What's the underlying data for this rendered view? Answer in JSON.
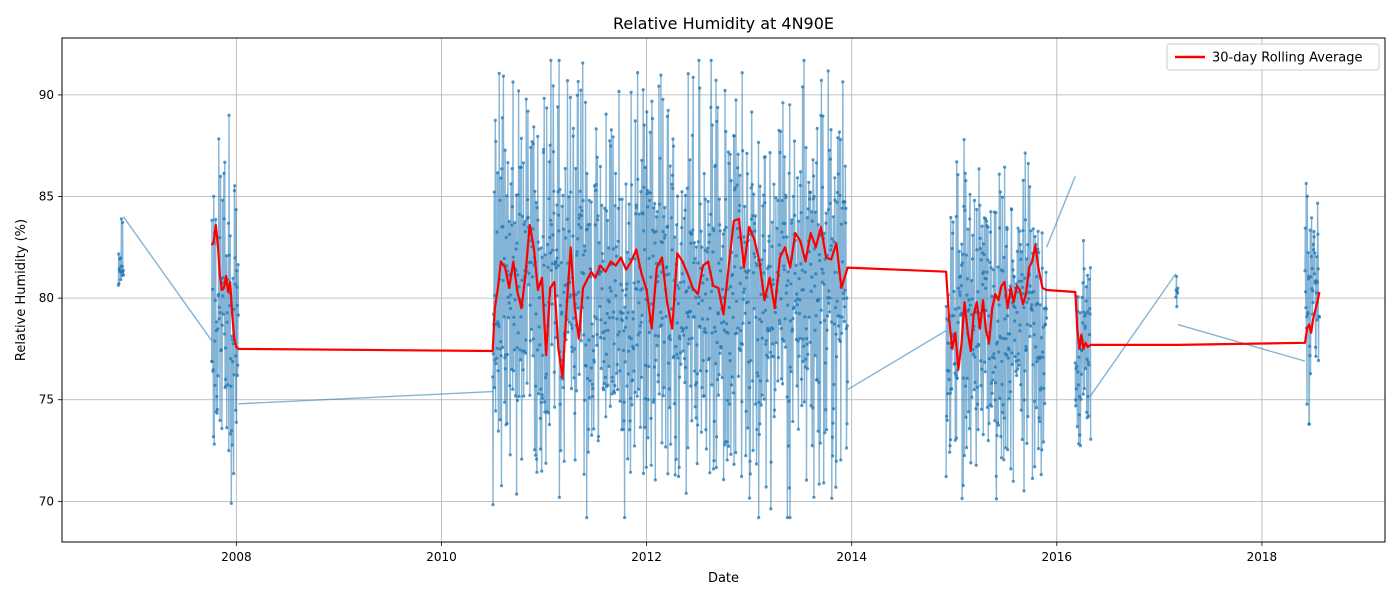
{
  "chart_data": {
    "type": "line",
    "title": "Relative Humidity at 4N90E",
    "xlabel": "Date",
    "ylabel": "Relative Humidity (%)",
    "xlim": [
      2006.3,
      2019.2
    ],
    "ylim": [
      68.0,
      92.8
    ],
    "x_ticks": [
      2008,
      2010,
      2012,
      2014,
      2016,
      2018
    ],
    "x_tick_labels": [
      "2008",
      "2010",
      "2012",
      "2014",
      "2016",
      "2018"
    ],
    "y_ticks": [
      70,
      75,
      80,
      85,
      90
    ],
    "y_tick_labels": [
      "70",
      "75",
      "80",
      "85",
      "90"
    ],
    "grid": true,
    "legend": {
      "position": "top-right",
      "entries": [
        "30-day Rolling Average"
      ]
    },
    "colors": {
      "daily": "#1f77b4",
      "rolling": "#ff0000"
    },
    "series": [
      {
        "style": "line-with-markers",
        "segments": [
          {
            "start": 2006.85,
            "end": 2006.9,
            "min": 79.5,
            "max": 84.3,
            "seed": 11
          },
          {
            "start": 2007.76,
            "end": 2008.02,
            "min": 69.9,
            "max": 89.0,
            "seed": 23
          },
          {
            "start": 2010.5,
            "end": 2013.96,
            "min": 69.2,
            "max": 91.7,
            "seed": 37
          },
          {
            "start": 2014.92,
            "end": 2015.9,
            "min": 70.1,
            "max": 87.8,
            "seed": 53
          },
          {
            "start": 2016.18,
            "end": 2016.33,
            "min": 72.3,
            "max": 83.0,
            "seed": 67
          },
          {
            "start": 2017.16,
            "end": 2017.18,
            "min": 78.7,
            "max": 81.6,
            "seed": 71
          },
          {
            "start": 2018.42,
            "end": 2018.56,
            "min": 73.8,
            "max": 86.5,
            "seed": 83
          }
        ],
        "bridges": [
          [
            [
              2006.9,
              84.0
            ],
            [
              2007.76,
              77.9
            ]
          ],
          [
            [
              2008.02,
              74.8
            ],
            [
              2010.5,
              75.4
            ]
          ],
          [
            [
              2013.96,
              75.5
            ],
            [
              2014.92,
              78.4
            ]
          ],
          [
            [
              2015.9,
              82.5
            ],
            [
              2016.18,
              86.0
            ]
          ],
          [
            [
              2016.33,
              75.2
            ],
            [
              2017.16,
              81.2
            ]
          ],
          [
            [
              2017.18,
              78.7
            ],
            [
              2018.42,
              76.9
            ]
          ]
        ]
      },
      {
        "name": "30-day Rolling Average",
        "style": "line",
        "x": [
          2007.76,
          2007.78,
          2007.8,
          2007.82,
          2007.84,
          2007.86,
          2007.88,
          2007.9,
          2007.92,
          2007.94,
          2007.96,
          2007.98,
          2008.0,
          2008.02,
          2010.5,
          2010.52,
          2010.55,
          2010.58,
          2010.62,
          2010.66,
          2010.7,
          2010.74,
          2010.78,
          2010.82,
          2010.86,
          2010.9,
          2010.94,
          2010.98,
          2011.02,
          2011.06,
          2011.1,
          2011.14,
          2011.18,
          2011.22,
          2011.26,
          2011.3,
          2011.34,
          2011.38,
          2011.42,
          2011.46,
          2011.5,
          2011.55,
          2011.6,
          2011.65,
          2011.7,
          2011.75,
          2011.8,
          2011.85,
          2011.9,
          2011.95,
          2012.0,
          2012.05,
          2012.1,
          2012.15,
          2012.2,
          2012.25,
          2012.3,
          2012.35,
          2012.4,
          2012.45,
          2012.5,
          2012.55,
          2012.6,
          2012.65,
          2012.7,
          2012.75,
          2012.8,
          2012.85,
          2012.9,
          2012.95,
          2013.0,
          2013.05,
          2013.1,
          2013.15,
          2013.2,
          2013.25,
          2013.3,
          2013.35,
          2013.4,
          2013.45,
          2013.5,
          2013.55,
          2013.6,
          2013.65,
          2013.7,
          2013.75,
          2013.8,
          2013.85,
          2013.9,
          2013.96,
          2014.92,
          2014.95,
          2014.98,
          2015.01,
          2015.04,
          2015.07,
          2015.1,
          2015.13,
          2015.16,
          2015.19,
          2015.22,
          2015.25,
          2015.28,
          2015.31,
          2015.34,
          2015.37,
          2015.4,
          2015.43,
          2015.46,
          2015.49,
          2015.52,
          2015.55,
          2015.58,
          2015.61,
          2015.64,
          2015.67,
          2015.7,
          2015.73,
          2015.76,
          2015.79,
          2015.82,
          2015.86,
          2015.9,
          2016.18,
          2016.2,
          2016.22,
          2016.24,
          2016.26,
          2016.28,
          2016.3,
          2016.33,
          2017.16,
          2017.18,
          2018.42,
          2018.44,
          2018.46,
          2018.48,
          2018.5,
          2018.52,
          2018.54,
          2018.56
        ],
        "y": [
          82.6,
          82.8,
          83.6,
          82.6,
          81.1,
          80.4,
          80.5,
          81.1,
          80.3,
          80.8,
          79.2,
          78.0,
          77.6,
          77.5,
          77.4,
          79.5,
          80.5,
          81.8,
          81.5,
          80.5,
          81.8,
          80.3,
          79.5,
          81.2,
          83.6,
          82.5,
          80.4,
          81.0,
          77.2,
          80.5,
          80.8,
          77.5,
          76.1,
          79.5,
          82.5,
          79.5,
          78.0,
          80.5,
          80.9,
          81.3,
          81.0,
          81.6,
          81.3,
          81.8,
          81.6,
          82.0,
          81.4,
          81.8,
          82.4,
          81.2,
          80.4,
          78.5,
          81.5,
          82.0,
          79.8,
          78.5,
          82.2,
          81.8,
          81.2,
          80.5,
          80.2,
          81.6,
          81.8,
          80.6,
          80.5,
          79.2,
          81.5,
          83.8,
          83.9,
          81.5,
          83.5,
          82.9,
          81.8,
          79.9,
          81.0,
          79.5,
          82.0,
          82.5,
          81.5,
          83.2,
          82.8,
          81.8,
          83.2,
          82.5,
          83.5,
          82.0,
          81.9,
          82.7,
          80.5,
          81.5,
          81.3,
          79.0,
          77.5,
          78.3,
          76.5,
          77.7,
          79.8,
          78.4,
          77.4,
          79.2,
          79.8,
          78.5,
          79.9,
          78.4,
          77.8,
          79.5,
          80.2,
          79.9,
          80.6,
          80.8,
          79.5,
          80.5,
          79.8,
          80.6,
          80.4,
          79.7,
          80.2,
          81.5,
          81.8,
          82.6,
          81.5,
          80.5,
          80.4,
          80.3,
          78.5,
          77.5,
          78.2,
          77.5,
          77.8,
          77.6,
          77.7,
          77.7,
          77.7,
          77.8,
          78.5,
          78.7,
          78.3,
          79.0,
          79.4,
          79.8,
          80.3
        ]
      }
    ]
  }
}
